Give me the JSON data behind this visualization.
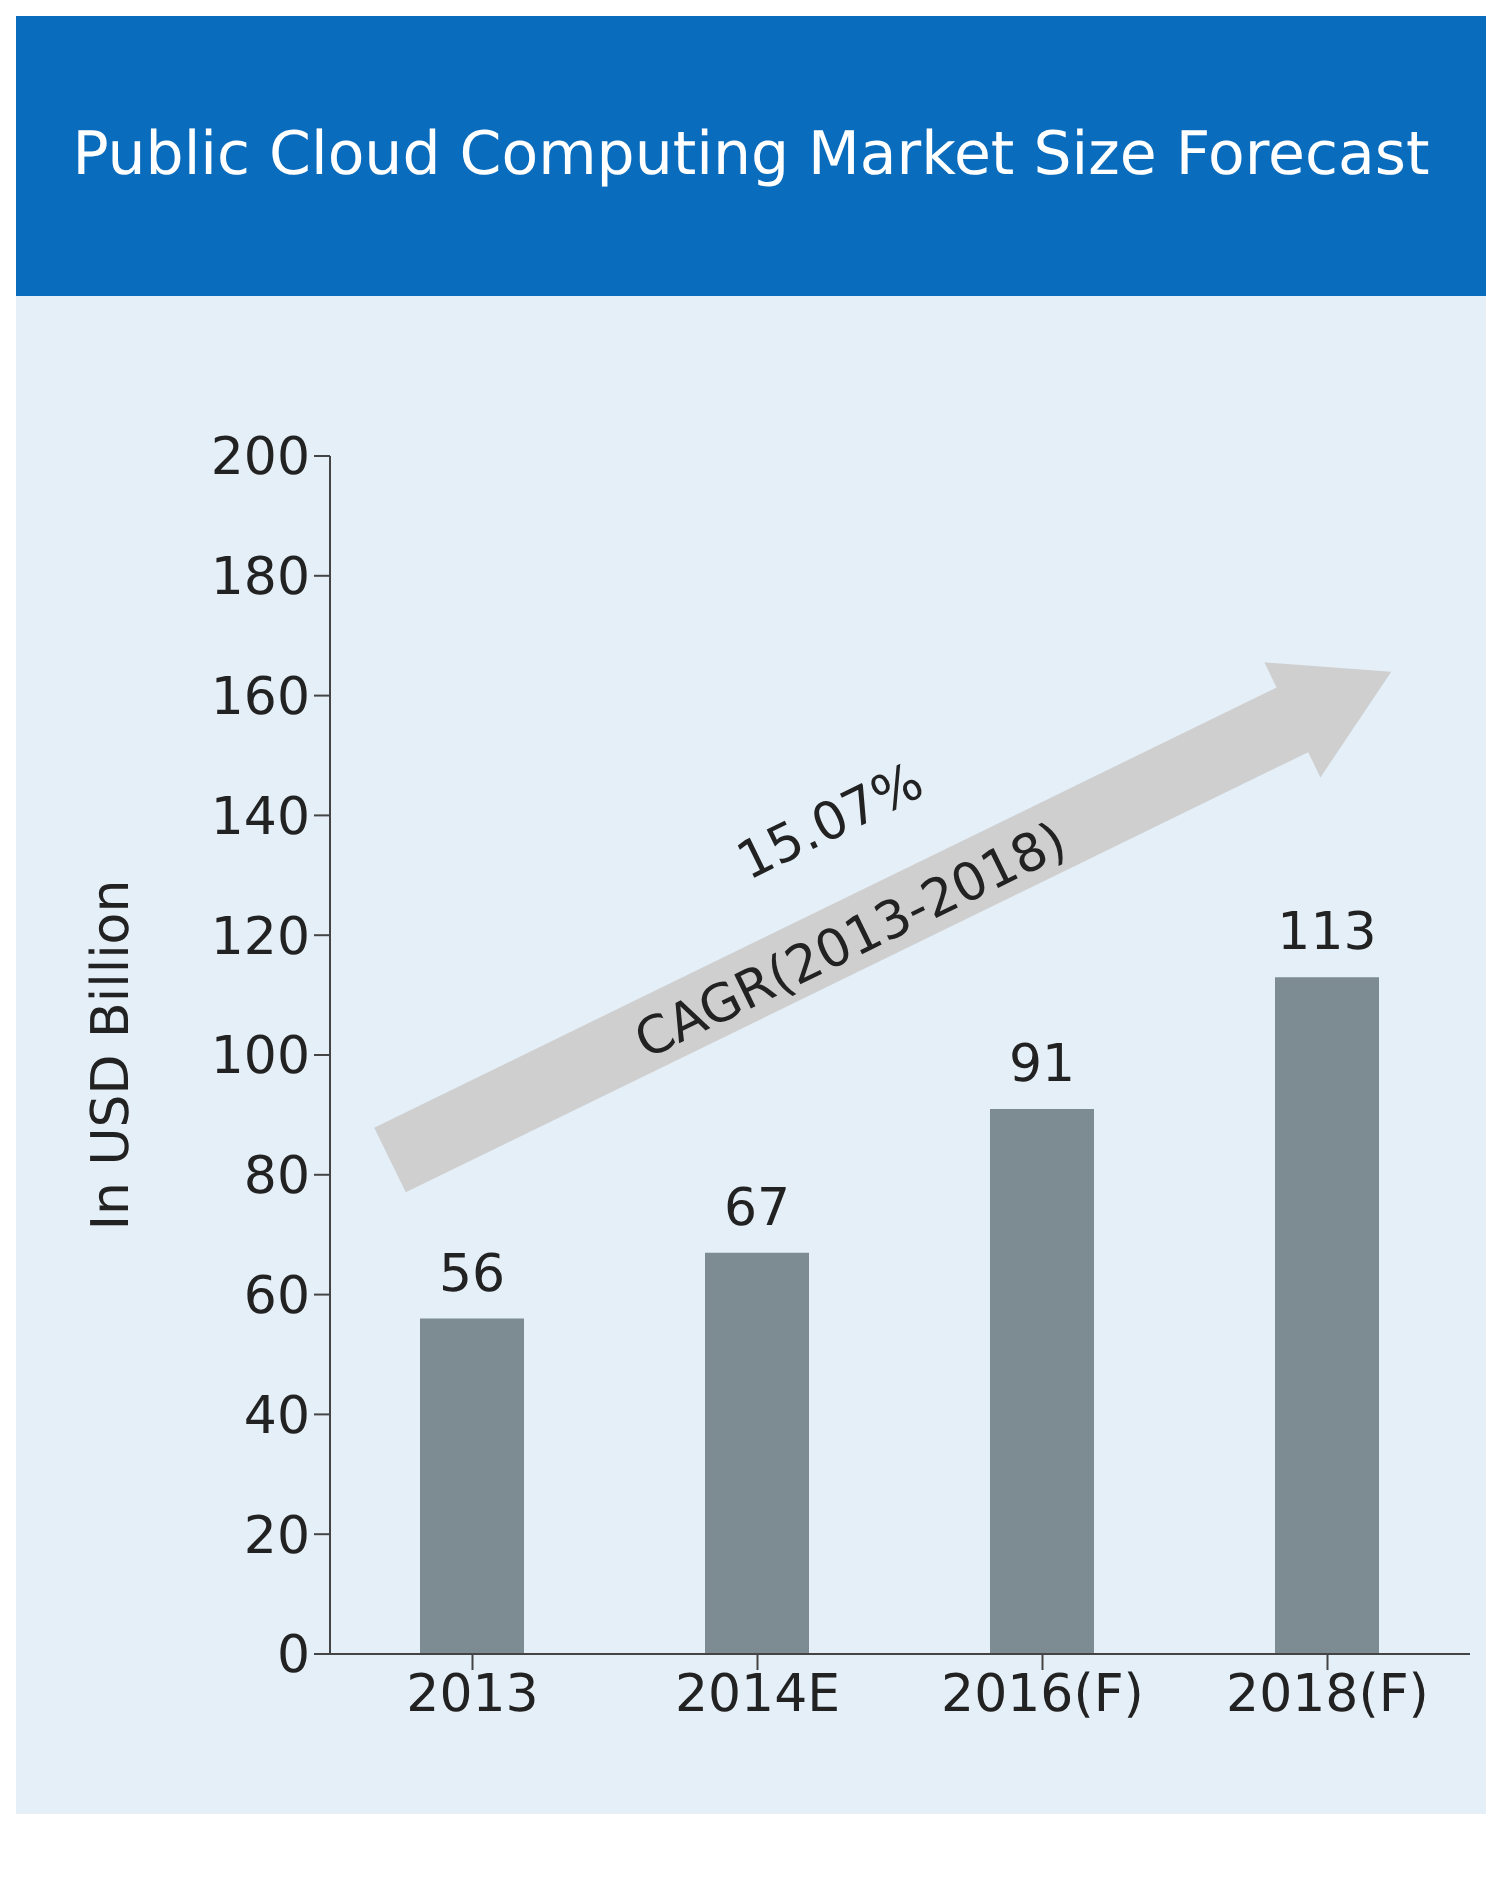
{
  "chart_data": {
    "type": "bar",
    "title": "Public Cloud Computing Market Size Forecast",
    "ylabel": "In USD Billion",
    "categories": [
      "2013",
      "2014E",
      "2016(F)",
      "2018(F)"
    ],
    "values": [
      56,
      67,
      91,
      113
    ],
    "color": "#7d8b93",
    "ylim": [
      0,
      200
    ],
    "yticks": [
      0,
      20,
      40,
      60,
      80,
      100,
      120,
      140,
      160,
      180,
      200
    ],
    "grid": false,
    "data_labels": true,
    "annotations": [
      "15.07%",
      "CAGR(2013-2018)"
    ]
  }
}
